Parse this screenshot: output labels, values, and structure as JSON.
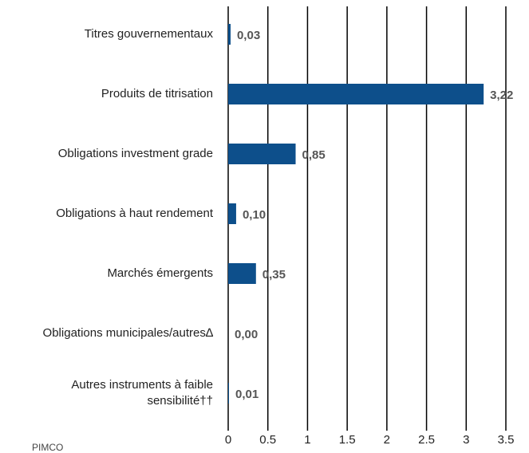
{
  "chart_data": {
    "type": "bar",
    "orientation": "horizontal",
    "categories": [
      "Titres gouvernementaux",
      "Produits de titrisation",
      "Obligations investment grade",
      "Obligations à haut rendement",
      "Marchés émergents",
      "Obligations municipales/autres∆",
      "Autres instruments à faible\nsensibilité††"
    ],
    "values": [
      0.03,
      3.22,
      0.85,
      0.1,
      0.35,
      0.0,
      0.01
    ],
    "value_labels": [
      "0,03",
      "3,22",
      "0,85",
      "0,10",
      "0,35",
      "0,00",
      "0,01"
    ],
    "color": "#0d4f8b",
    "xlim": [
      0,
      3.5
    ],
    "xticks": [
      0,
      0.5,
      1,
      1.5,
      2,
      2.5,
      3,
      3.5
    ],
    "grid": true,
    "source": "PIMCO"
  }
}
